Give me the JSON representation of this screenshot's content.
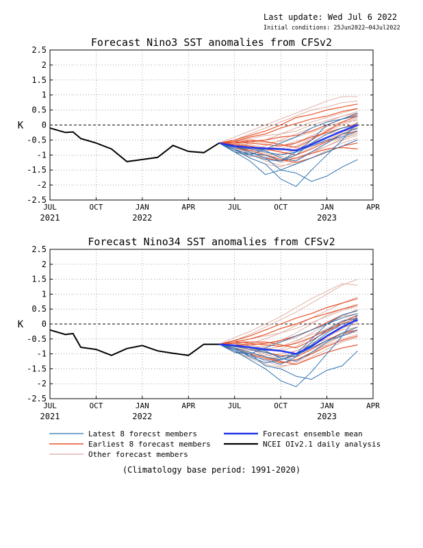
{
  "header": {
    "last_update": "Last update: Wed Jul 6 2022",
    "initial_conditions": "Initial conditions: 25Jun2022–04Jul2022"
  },
  "colors": {
    "latest": "#2b6fb0",
    "earliest": "#e8502a",
    "other": "#dca89a",
    "mean": "#2233ee",
    "obs": "#000000"
  },
  "legend": {
    "latest": "Latest 8 forecst members",
    "earliest": "Earliest 8 forecast members",
    "other": "Other forecast members",
    "mean": "Forecast ensemble mean",
    "obs": "NCEI OIv2.1 daily analysis"
  },
  "footnote": "(Climatology base period: 1991-2020)",
  "chart_data": [
    {
      "type": "line",
      "title": "Forecast Nino3 SST anomalies from CFSv2",
      "ylabel": "K",
      "ylim": [
        -2.5,
        2.5
      ],
      "yticks": [
        "2.5",
        "2",
        "1.5",
        "1",
        "0.5",
        "0",
        "-0.5",
        "-1",
        "-1.5",
        "-2",
        "-2.5"
      ],
      "xlim": [
        0,
        21
      ],
      "xticks": [
        {
          "x": 0,
          "month": "JUL",
          "year": "2021"
        },
        {
          "x": 3,
          "month": "OCT",
          "year": ""
        },
        {
          "x": 6,
          "month": "JAN",
          "year": "2022"
        },
        {
          "x": 9,
          "month": "APR",
          "year": ""
        },
        {
          "x": 12,
          "month": "JUL",
          "year": ""
        },
        {
          "x": 15,
          "month": "OCT",
          "year": ""
        },
        {
          "x": 18,
          "month": "JAN",
          "year": "2023"
        },
        {
          "x": 21,
          "month": "APR",
          "year": ""
        }
      ],
      "grid": true,
      "observed": {
        "x": [
          0,
          1,
          1.5,
          2,
          3,
          4,
          5,
          6,
          7,
          8,
          9,
          10,
          11
        ],
        "y": [
          -0.1,
          -0.25,
          -0.23,
          -0.45,
          -0.6,
          -0.8,
          -1.22,
          -1.15,
          -1.08,
          -0.68,
          -0.88,
          -0.92,
          -0.6
        ]
      },
      "forecast_x": [
        11,
        12,
        13,
        14,
        15,
        16,
        17,
        18,
        19,
        20
      ],
      "ensemble_mean": [
        -0.6,
        -0.7,
        -0.75,
        -0.78,
        -0.8,
        -0.85,
        -0.65,
        -0.42,
        -0.2,
        0
      ],
      "latest_members": [
        [
          -0.6,
          -0.9,
          -1.2,
          -1.65,
          -1.5,
          -1.3,
          -1.1,
          -0.9,
          -0.7,
          -0.5
        ],
        [
          -0.6,
          -0.8,
          -1.1,
          -1.3,
          -1.8,
          -2.05,
          -1.5,
          -1.0,
          -0.5,
          0.1
        ],
        [
          -0.6,
          -0.7,
          -0.9,
          -1.1,
          -1.5,
          -1.6,
          -1.88,
          -1.7,
          -1.4,
          -1.15
        ],
        [
          -0.6,
          -0.85,
          -0.95,
          -1.0,
          -1.2,
          -1.0,
          -0.6,
          -0.3,
          -0.1,
          0.0
        ],
        [
          -0.6,
          -0.75,
          -0.8,
          -0.9,
          -1.0,
          -0.9,
          -0.5,
          0.0,
          0.2,
          0.3
        ],
        [
          -0.6,
          -0.9,
          -1.0,
          -0.8,
          -0.6,
          -0.4,
          -0.1,
          0.1,
          0.2,
          0.4
        ],
        [
          -0.6,
          -0.7,
          -0.75,
          -0.85,
          -1.1,
          -1.2,
          -0.9,
          -0.6,
          -0.3,
          -0.1
        ],
        [
          -0.6,
          -0.8,
          -1.0,
          -1.15,
          -1.2,
          -0.9,
          -0.7,
          -0.5,
          -0.4,
          -0.2
        ]
      ],
      "earliest_members": [
        [
          -0.6,
          -0.5,
          -0.35,
          -0.2,
          0.0,
          0.25,
          0.35,
          0.5,
          0.6,
          0.7
        ],
        [
          -0.6,
          -0.55,
          -0.4,
          -0.3,
          -0.1,
          0.05,
          0.2,
          0.3,
          0.45,
          0.55
        ],
        [
          -0.6,
          -0.6,
          -0.55,
          -0.5,
          -0.4,
          -0.35,
          -0.2,
          0.0,
          0.2,
          0.35
        ],
        [
          -0.6,
          -0.65,
          -0.7,
          -0.8,
          -0.9,
          -1.0,
          -0.8,
          -0.55,
          -0.3,
          -0.2
        ],
        [
          -0.6,
          -0.7,
          -0.85,
          -1.0,
          -1.15,
          -1.25,
          -1.1,
          -0.9,
          -0.7,
          -0.6
        ],
        [
          -0.6,
          -0.55,
          -0.6,
          -0.65,
          -0.7,
          -0.6,
          -0.4,
          -0.25,
          -0.1,
          0.05
        ],
        [
          -0.6,
          -0.75,
          -0.9,
          -1.1,
          -1.2,
          -1.1,
          -0.95,
          -0.8,
          -0.75,
          -0.8
        ],
        [
          -0.6,
          -0.6,
          -0.5,
          -0.55,
          -0.65,
          -0.75,
          -0.5,
          -0.2,
          0.1,
          0.3
        ]
      ],
      "other_members": [
        [
          -0.6,
          -0.4,
          -0.2,
          0.0,
          0.2,
          0.4,
          0.6,
          0.8,
          0.95,
          0.95
        ],
        [
          -0.6,
          -0.5,
          -0.3,
          -0.1,
          0.1,
          0.3,
          0.5,
          0.6,
          0.75,
          0.8
        ],
        [
          -0.6,
          -0.7,
          -0.8,
          -0.7,
          -0.5,
          -0.3,
          -0.1,
          0.1,
          0.3,
          0.4
        ],
        [
          -0.6,
          -0.8,
          -1.0,
          -1.1,
          -1.0,
          -0.8,
          -0.6,
          -0.4,
          -0.2,
          -0.1
        ],
        [
          -0.6,
          -0.65,
          -0.75,
          -0.9,
          -1.05,
          -1.1,
          -0.9,
          -0.7,
          -0.5,
          -0.35
        ],
        [
          -0.6,
          -0.55,
          -0.45,
          -0.35,
          -0.3,
          -0.2,
          0.0,
          0.15,
          0.3,
          0.45
        ],
        [
          -0.6,
          -0.75,
          -0.95,
          -1.2,
          -1.35,
          -1.3,
          -1.1,
          -0.85,
          -0.6,
          -0.45
        ],
        [
          -0.6,
          -0.6,
          -0.65,
          -0.75,
          -0.85,
          -0.7,
          -0.45,
          -0.2,
          0.0,
          0.2
        ],
        [
          -0.6,
          -0.85,
          -1.1,
          -1.3,
          -1.4,
          -1.2,
          -0.9,
          -0.6,
          -0.35,
          -0.2
        ],
        [
          -0.6,
          -0.5,
          -0.55,
          -0.6,
          -0.55,
          -0.4,
          -0.25,
          -0.05,
          0.1,
          0.15
        ],
        [
          -0.6,
          -0.7,
          -0.6,
          -0.5,
          -0.3,
          -0.1,
          0.1,
          0.25,
          0.4,
          0.55
        ],
        [
          -0.6,
          -0.9,
          -1.05,
          -1.0,
          -0.95,
          -0.85,
          -0.7,
          -0.55,
          -0.45,
          -0.3
        ],
        [
          -0.6,
          -0.65,
          -0.8,
          -0.95,
          -1.15,
          -1.0,
          -0.75,
          -0.5,
          -0.25,
          -0.05
        ],
        [
          -0.6,
          -0.55,
          -0.7,
          -0.85,
          -0.8,
          -0.6,
          -0.35,
          -0.15,
          0.05,
          0.25
        ],
        [
          -0.6,
          -0.75,
          -0.85,
          -0.8,
          -0.7,
          -0.55,
          -0.4,
          -0.3,
          -0.2,
          -0.15
        ],
        [
          -0.6,
          -0.6,
          -0.75,
          -1.05,
          -1.25,
          -1.15,
          -0.95,
          -0.7,
          -0.45,
          -0.25
        ]
      ]
    },
    {
      "type": "line",
      "title": "Forecast Nino34 SST anomalies from CFSv2",
      "ylabel": "K",
      "ylim": [
        -2.5,
        2.5
      ],
      "yticks": [
        "2.5",
        "2",
        "1.5",
        "1",
        "0.5",
        "0",
        "-0.5",
        "-1",
        "-1.5",
        "-2",
        "-2.5"
      ],
      "xlim": [
        0,
        21
      ],
      "xticks": [
        {
          "x": 0,
          "month": "JUL",
          "year": "2021"
        },
        {
          "x": 3,
          "month": "OCT",
          "year": ""
        },
        {
          "x": 6,
          "month": "JAN",
          "year": "2022"
        },
        {
          "x": 9,
          "month": "APR",
          "year": ""
        },
        {
          "x": 12,
          "month": "JUL",
          "year": ""
        },
        {
          "x": 15,
          "month": "OCT",
          "year": ""
        },
        {
          "x": 18,
          "month": "JAN",
          "year": "2023"
        },
        {
          "x": 21,
          "month": "APR",
          "year": ""
        }
      ],
      "grid": true,
      "observed": {
        "x": [
          0,
          1,
          1.5,
          2,
          3,
          4,
          5,
          6,
          7,
          8,
          9,
          10,
          11
        ],
        "y": [
          -0.2,
          -0.35,
          -0.32,
          -0.78,
          -0.85,
          -1.05,
          -0.82,
          -0.72,
          -0.9,
          -0.98,
          -1.05,
          -0.68,
          -0.68
        ]
      },
      "forecast_x": [
        11,
        12,
        13,
        14,
        15,
        16,
        17,
        18,
        19,
        20
      ],
      "ensemble_mean": [
        -0.68,
        -0.72,
        -0.78,
        -0.85,
        -0.9,
        -1.0,
        -0.75,
        -0.4,
        -0.1,
        0.15
      ],
      "latest_members": [
        [
          -0.68,
          -0.9,
          -1.2,
          -1.5,
          -1.9,
          -2.1,
          -1.6,
          -1.0,
          -0.4,
          0.3
        ],
        [
          -0.68,
          -0.85,
          -1.0,
          -1.4,
          -1.5,
          -1.75,
          -1.85,
          -1.55,
          -1.4,
          -0.9
        ],
        [
          -0.68,
          -0.8,
          -1.1,
          -1.3,
          -1.2,
          -1.0,
          -0.7,
          -0.3,
          0.0,
          0.1
        ],
        [
          -0.68,
          -0.75,
          -0.85,
          -0.95,
          -1.1,
          -1.0,
          -0.5,
          0.0,
          0.3,
          0.45
        ],
        [
          -0.68,
          -0.95,
          -1.0,
          -0.8,
          -0.6,
          -0.4,
          -0.2,
          0.0,
          0.2,
          0.35
        ],
        [
          -0.68,
          -0.7,
          -0.8,
          -0.9,
          -1.15,
          -1.25,
          -0.95,
          -0.6,
          -0.3,
          -0.1
        ],
        [
          -0.68,
          -0.8,
          -0.95,
          -1.1,
          -1.2,
          -1.05,
          -0.8,
          -0.55,
          -0.4,
          -0.2
        ],
        [
          -0.68,
          -0.9,
          -1.05,
          -1.2,
          -1.35,
          -1.1,
          -0.6,
          -0.2,
          0.1,
          0.2
        ]
      ],
      "earliest_members": [
        [
          -0.68,
          -0.55,
          -0.4,
          -0.2,
          0.0,
          0.2,
          0.35,
          0.55,
          0.7,
          0.85
        ],
        [
          -0.68,
          -0.6,
          -0.5,
          -0.35,
          -0.15,
          0.0,
          0.2,
          0.35,
          0.5,
          0.65
        ],
        [
          -0.68,
          -0.7,
          -0.7,
          -0.65,
          -0.55,
          -0.4,
          -0.2,
          0.05,
          0.3,
          0.45
        ],
        [
          -0.68,
          -0.75,
          -0.85,
          -0.95,
          -1.05,
          -1.1,
          -0.85,
          -0.55,
          -0.3,
          -0.2
        ],
        [
          -0.68,
          -0.8,
          -0.95,
          -1.1,
          -1.25,
          -1.35,
          -1.15,
          -0.95,
          -0.8,
          -0.7
        ],
        [
          -0.68,
          -0.6,
          -0.65,
          -0.7,
          -0.75,
          -0.65,
          -0.45,
          -0.2,
          0.0,
          0.2
        ],
        [
          -0.68,
          -0.85,
          -1.0,
          -1.15,
          -1.3,
          -1.2,
          -1.0,
          -0.75,
          -0.55,
          -0.4
        ],
        [
          -0.68,
          -0.65,
          -0.6,
          -0.6,
          -0.7,
          -0.8,
          -0.55,
          -0.25,
          0.05,
          0.3
        ]
      ],
      "other_members": [
        [
          -0.68,
          -0.45,
          -0.25,
          0.0,
          0.25,
          0.55,
          0.85,
          1.1,
          1.35,
          1.3
        ],
        [
          -0.68,
          -0.55,
          -0.35,
          -0.1,
          0.15,
          0.4,
          0.7,
          1.0,
          1.3,
          1.5
        ],
        [
          -0.68,
          -0.75,
          -0.8,
          -0.75,
          -0.55,
          -0.3,
          0.0,
          0.3,
          0.5,
          0.6
        ],
        [
          -0.68,
          -0.85,
          -1.05,
          -1.2,
          -1.1,
          -0.9,
          -0.65,
          -0.4,
          -0.2,
          -0.1
        ],
        [
          -0.68,
          -0.7,
          -0.8,
          -0.95,
          -1.1,
          -1.2,
          -0.95,
          -0.7,
          -0.5,
          -0.35
        ],
        [
          -0.68,
          -0.6,
          -0.5,
          -0.4,
          -0.3,
          -0.15,
          0.05,
          0.25,
          0.45,
          0.6
        ],
        [
          -0.68,
          -0.8,
          -1.0,
          -1.25,
          -1.4,
          -1.35,
          -1.1,
          -0.85,
          -0.6,
          -0.45
        ],
        [
          -0.68,
          -0.65,
          -0.7,
          -0.8,
          -0.9,
          -0.75,
          -0.45,
          -0.15,
          0.1,
          0.3
        ],
        [
          -0.68,
          -0.9,
          -1.15,
          -1.35,
          -1.45,
          -1.3,
          -1.0,
          -0.65,
          -0.4,
          -0.25
        ],
        [
          -0.68,
          -0.55,
          -0.6,
          -0.65,
          -0.6,
          -0.45,
          -0.2,
          0.05,
          0.25,
          0.35
        ],
        [
          -0.68,
          -0.75,
          -0.65,
          -0.5,
          -0.3,
          -0.05,
          0.2,
          0.45,
          0.7,
          0.9
        ],
        [
          -0.68,
          -0.95,
          -1.1,
          -1.05,
          -1.0,
          -0.9,
          -0.7,
          -0.5,
          -0.35,
          -0.2
        ],
        [
          -0.68,
          -0.7,
          -0.85,
          -1.0,
          -1.2,
          -1.05,
          -0.75,
          -0.45,
          -0.15,
          0.05
        ],
        [
          -0.68,
          -0.6,
          -0.75,
          -0.9,
          -0.85,
          -0.6,
          -0.3,
          0.0,
          0.25,
          0.5
        ],
        [
          -0.68,
          -0.8,
          -0.9,
          -0.85,
          -0.75,
          -0.55,
          -0.35,
          -0.2,
          -0.1,
          0.0
        ],
        [
          -0.68,
          -0.65,
          -0.8,
          -1.1,
          -1.3,
          -1.2,
          -0.95,
          -0.65,
          -0.35,
          -0.1
        ]
      ]
    }
  ]
}
